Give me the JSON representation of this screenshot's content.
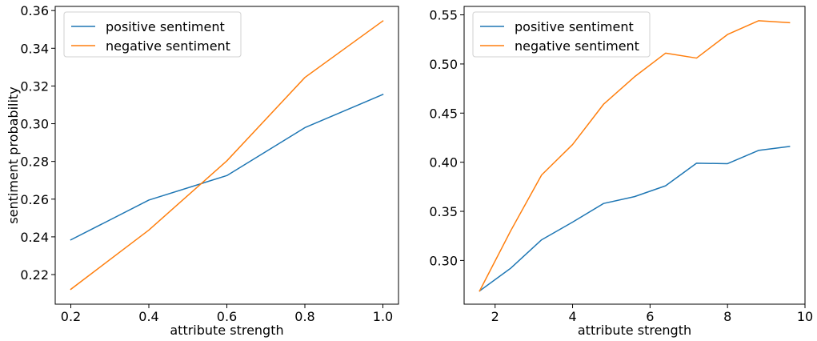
{
  "colors": {
    "positive": "#1f77b4",
    "negative": "#ff7f0e"
  },
  "chart_data": [
    {
      "type": "line",
      "xlabel": "attribute strength",
      "ylabel": "sentiment probability",
      "xlim": [
        0.16,
        1.04
      ],
      "ylim": [
        0.2043,
        0.3622
      ],
      "xticks": [
        0.2,
        0.4,
        0.6,
        0.8,
        1.0
      ],
      "xtick_labels": [
        "0.2",
        "0.4",
        "0.6",
        "0.8",
        "1.0"
      ],
      "yticks": [
        0.22,
        0.24,
        0.26,
        0.28,
        0.3,
        0.32,
        0.34,
        0.36
      ],
      "ytick_labels": [
        "0.22",
        "0.24",
        "0.26",
        "0.28",
        "0.30",
        "0.32",
        "0.34",
        "0.36"
      ],
      "grid": false,
      "legend": "top-left",
      "x": [
        0.2,
        0.4,
        0.6,
        0.8,
        1.0
      ],
      "series": [
        {
          "name": "positive sentiment",
          "color": "#1f77b4",
          "values": [
            0.2384,
            0.2595,
            0.2725,
            0.2979,
            0.3155
          ]
        },
        {
          "name": "negative sentiment",
          "color": "#ff7f0e",
          "values": [
            0.2122,
            0.2436,
            0.2803,
            0.3245,
            0.3545
          ]
        }
      ]
    },
    {
      "type": "line",
      "xlabel": "attribute strength",
      "ylabel": "",
      "xlim": [
        1.2,
        10.0
      ],
      "ylim": [
        0.2555,
        0.5586
      ],
      "xticks": [
        2,
        4,
        6,
        8,
        10
      ],
      "xtick_labels": [
        "2",
        "4",
        "6",
        "8",
        "10"
      ],
      "yticks": [
        0.3,
        0.35,
        0.4,
        0.45,
        0.5,
        0.55
      ],
      "ytick_labels": [
        "0.30",
        "0.35",
        "0.40",
        "0.45",
        "0.50",
        "0.55"
      ],
      "grid": false,
      "legend": "top-left",
      "x": [
        1.6,
        2.4,
        3.2,
        4.0,
        4.8,
        5.6,
        6.4,
        7.2,
        8.0,
        8.8,
        9.6
      ],
      "series": [
        {
          "name": "positive sentiment",
          "color": "#1f77b4",
          "values": [
            0.269,
            0.292,
            0.321,
            0.339,
            0.358,
            0.365,
            0.376,
            0.399,
            0.3985,
            0.412,
            0.416
          ]
        },
        {
          "name": "negative sentiment",
          "color": "#ff7f0e",
          "values": [
            0.269,
            0.33,
            0.387,
            0.418,
            0.459,
            0.487,
            0.511,
            0.506,
            0.53,
            0.544,
            0.542
          ]
        }
      ]
    }
  ]
}
